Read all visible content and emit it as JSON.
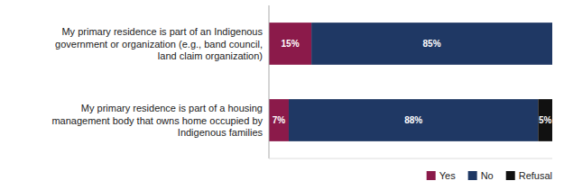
{
  "chart_data": {
    "type": "bar",
    "orientation": "horizontal",
    "stacked": true,
    "data_labels": true,
    "categories": [
      "My primary residence is part of an Indigenous\ngovernment or organization (e.g., band council,\nland claim organization)",
      "My primary residence is part of a housing\nmanagement body that owns home occupied by\nIndigenous families"
    ],
    "series": [
      {
        "name": "Yes",
        "color": "#8B1A4A",
        "values": [
          15,
          7
        ],
        "value_labels": [
          "15%",
          "7%"
        ]
      },
      {
        "name": "No",
        "color": "#1F3864",
        "values": [
          85,
          88
        ],
        "value_labels": [
          "85%",
          "88%"
        ]
      },
      {
        "name": "Refusal",
        "color": "#111111",
        "values": [
          0,
          5
        ],
        "value_labels": [
          null,
          "5%"
        ]
      }
    ],
    "xlim": [
      0,
      100
    ],
    "xticks": [],
    "tick_labels": "y",
    "grid": false,
    "legend": "lower right"
  }
}
